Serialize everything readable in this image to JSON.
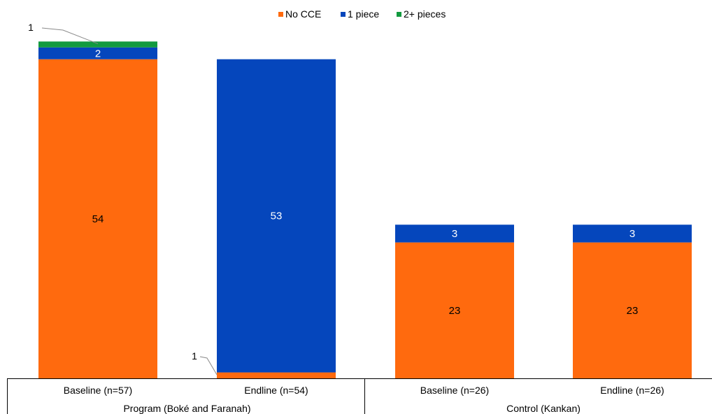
{
  "chart_data": {
    "type": "bar",
    "stacked": true,
    "title": "",
    "xlabel": "",
    "ylabel": "",
    "ylim": [
      0,
      58
    ],
    "grid": false,
    "legend": "top-center",
    "categories": [
      "Baseline (n=57)",
      "Endline (n=54)",
      "Baseline (n=26)",
      "Endline (n=26)"
    ],
    "groups": [
      {
        "label": "Program (Boké and Faranah)",
        "categories": [
          0,
          1
        ]
      },
      {
        "label": "Control (Kankan)",
        "categories": [
          2,
          3
        ]
      }
    ],
    "series": [
      {
        "name": "No CCE",
        "color": "#FF6A0E",
        "label_color": "#000000",
        "values": [
          54,
          1,
          23,
          23
        ],
        "labels": [
          "54",
          "1",
          "23",
          "23"
        ]
      },
      {
        "name": "1 piece",
        "color": "#0546BC",
        "label_color": "#ffffff",
        "values": [
          2,
          53,
          3,
          3
        ],
        "labels": [
          "2",
          "53",
          "3",
          "3"
        ]
      },
      {
        "name": "2+ pieces",
        "color": "#129A3F",
        "label_color": "#000000",
        "values": [
          1,
          0,
          0,
          0
        ],
        "labels": [
          "1",
          "",
          "",
          ""
        ]
      }
    ]
  }
}
